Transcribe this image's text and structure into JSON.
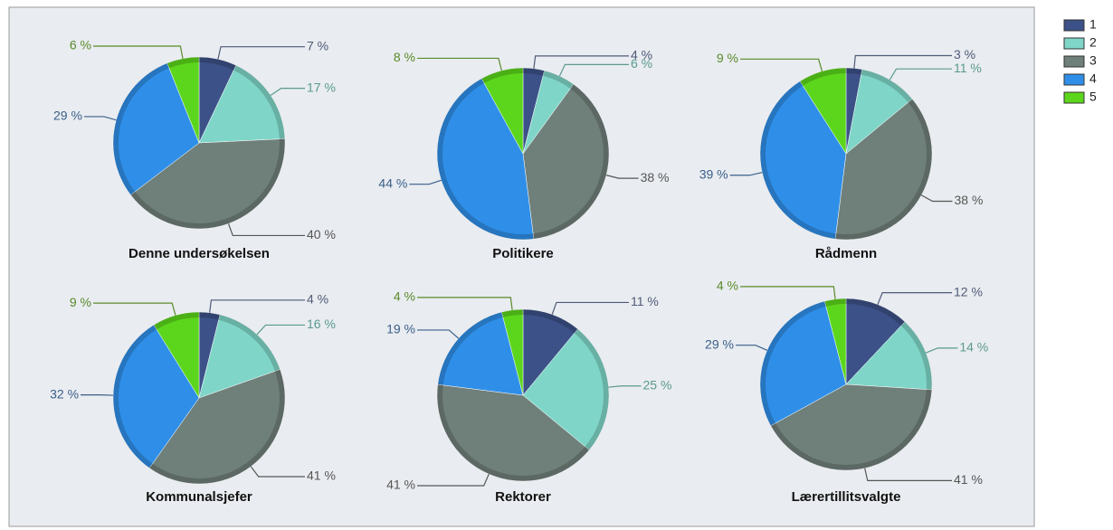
{
  "legend": {
    "names": [
      "1",
      "2",
      "3",
      "4",
      "5"
    ],
    "colors": [
      "#3c5188",
      "#7fd6c8",
      "#6f7f7a",
      "#2f8fe8",
      "#5cd61c"
    ]
  },
  "chart_data": [
    {
      "type": "pie",
      "title": "Denne undersøkelsen",
      "values": [
        7,
        17,
        40,
        29,
        6
      ],
      "value_labels": [
        "7 %",
        "17 %",
        "40 %",
        "29 %",
        "6 %"
      ]
    },
    {
      "type": "pie",
      "title": "Politikere",
      "values": [
        4,
        6,
        38,
        44,
        8
      ],
      "value_labels": [
        "4 %",
        "6 %",
        "38 %",
        "44 %",
        "8 %"
      ]
    },
    {
      "type": "pie",
      "title": "Rådmenn",
      "values": [
        3,
        11,
        38,
        39,
        9
      ],
      "value_labels": [
        "3 %",
        "11 %",
        "38 %",
        "39 %",
        "9 %"
      ]
    },
    {
      "type": "pie",
      "title": "Kommunalsjefer",
      "values": [
        4,
        16,
        41,
        32,
        9
      ],
      "value_labels": [
        "4 %",
        "16 %",
        "41 %",
        "32 %",
        "9 %"
      ]
    },
    {
      "type": "pie",
      "title": "Rektorer",
      "values": [
        11,
        25,
        41,
        19,
        4
      ],
      "value_labels": [
        "11 %",
        "25 %",
        "41 %",
        "19 %",
        "4 %"
      ]
    },
    {
      "type": "pie",
      "title": "Lærertillitsvalgte",
      "values": [
        12,
        14,
        41,
        29,
        4
      ],
      "value_labels": [
        "12 %",
        "14 %",
        "41 %",
        "29 %",
        "4 %"
      ]
    }
  ]
}
